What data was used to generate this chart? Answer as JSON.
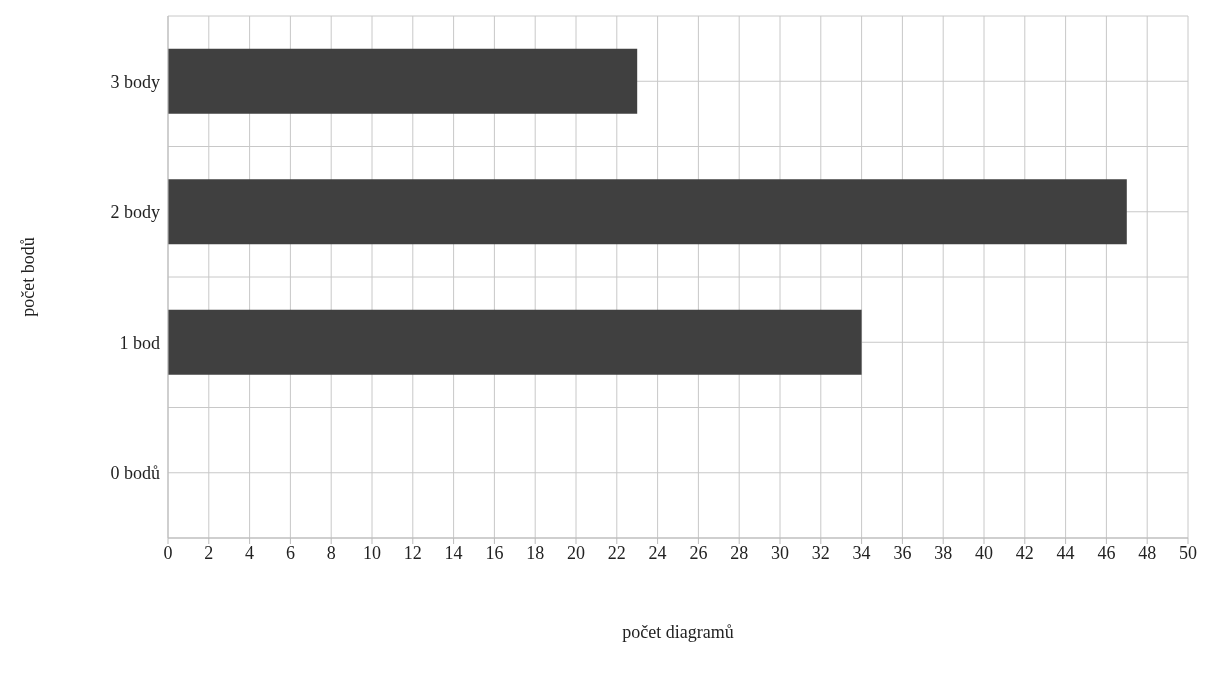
{
  "chart_data": {
    "type": "bar",
    "orientation": "horizontal",
    "categories": [
      "3 body",
      "2 body",
      "1 bod",
      "0 bodů"
    ],
    "values": [
      23,
      47,
      34,
      0
    ],
    "color": "#404040",
    "xlabel": "počet diagramů",
    "ylabel": "počet bodů",
    "xlim": [
      0,
      50
    ],
    "xticks": [
      0,
      2,
      4,
      6,
      8,
      10,
      12,
      14,
      16,
      18,
      20,
      22,
      24,
      26,
      28,
      30,
      32,
      34,
      36,
      38,
      40,
      42,
      44,
      46,
      48,
      50
    ],
    "grid": true
  }
}
